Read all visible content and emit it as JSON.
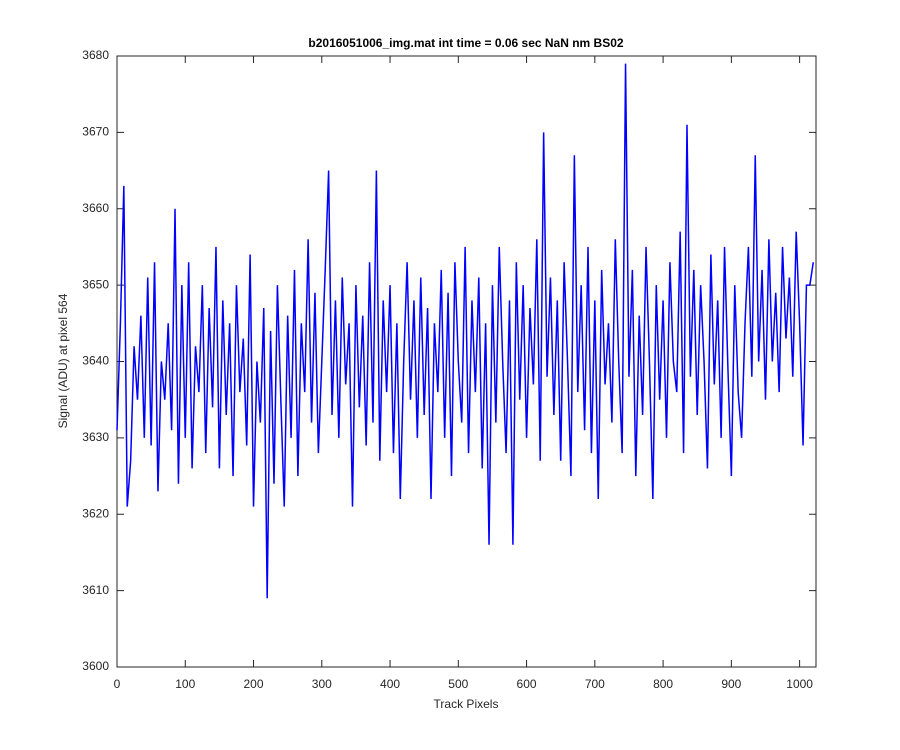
{
  "chart_data": {
    "type": "line",
    "title": "b2016051006_img.mat int time = 0.06 sec  NaN nm BS02",
    "x_label": "Track Pixels",
    "y_label": "Signal (ADU) at pixel 564",
    "xlim": [
      0,
      1024
    ],
    "xticks": [
      0,
      100,
      200,
      300,
      400,
      500,
      600,
      700,
      800,
      900,
      1000
    ],
    "ylim": [
      3600,
      3680
    ],
    "yticks": [
      3600,
      3610,
      3620,
      3630,
      3640,
      3650,
      3660,
      3670,
      3680
    ],
    "grid": false,
    "series": [
      {
        "color": "#0000ff",
        "x": [
          0,
          5,
          10,
          15,
          20,
          25,
          30,
          35,
          40,
          45,
          50,
          55,
          60,
          65,
          70,
          75,
          80,
          85,
          90,
          95,
          100,
          105,
          110,
          115,
          120,
          125,
          130,
          135,
          140,
          145,
          150,
          155,
          160,
          165,
          170,
          175,
          180,
          185,
          190,
          195,
          200,
          205,
          210,
          215,
          220,
          225,
          230,
          235,
          240,
          245,
          250,
          255,
          260,
          265,
          270,
          275,
          280,
          285,
          290,
          295,
          300,
          305,
          310,
          315,
          320,
          325,
          330,
          335,
          340,
          345,
          350,
          355,
          360,
          365,
          370,
          375,
          380,
          385,
          390,
          395,
          400,
          405,
          410,
          415,
          420,
          425,
          430,
          435,
          440,
          445,
          450,
          455,
          460,
          465,
          470,
          475,
          480,
          485,
          490,
          495,
          500,
          505,
          510,
          515,
          520,
          525,
          530,
          535,
          540,
          545,
          550,
          555,
          560,
          565,
          570,
          575,
          580,
          585,
          590,
          595,
          600,
          605,
          610,
          615,
          620,
          625,
          630,
          635,
          640,
          645,
          650,
          655,
          660,
          665,
          670,
          675,
          680,
          685,
          690,
          695,
          700,
          705,
          710,
          715,
          720,
          725,
          730,
          735,
          740,
          745,
          750,
          755,
          760,
          765,
          770,
          775,
          780,
          785,
          790,
          795,
          800,
          805,
          810,
          815,
          820,
          825,
          830,
          835,
          840,
          845,
          850,
          855,
          860,
          865,
          870,
          875,
          880,
          885,
          890,
          895,
          900,
          905,
          910,
          915,
          920,
          925,
          930,
          935,
          940,
          945,
          950,
          955,
          960,
          965,
          970,
          975,
          980,
          985,
          990,
          995,
          1000,
          1005,
          1010,
          1015,
          1020
        ],
        "values": [
          3631,
          3645,
          3663,
          3621,
          3627,
          3642,
          3635,
          3646,
          3630,
          3651,
          3629,
          3653,
          3623,
          3640,
          3635,
          3645,
          3631,
          3660,
          3624,
          3650,
          3630,
          3653,
          3626,
          3642,
          3636,
          3650,
          3628,
          3647,
          3634,
          3655,
          3626,
          3648,
          3633,
          3645,
          3625,
          3650,
          3636,
          3643,
          3629,
          3654,
          3621,
          3640,
          3632,
          3647,
          3609,
          3644,
          3624,
          3650,
          3635,
          3621,
          3646,
          3630,
          3652,
          3625,
          3645,
          3636,
          3656,
          3632,
          3649,
          3628,
          3640,
          3652,
          3665,
          3633,
          3648,
          3630,
          3651,
          3637,
          3645,
          3621,
          3650,
          3634,
          3646,
          3629,
          3653,
          3632,
          3665,
          3627,
          3648,
          3636,
          3650,
          3628,
          3645,
          3622,
          3640,
          3653,
          3635,
          3648,
          3630,
          3651,
          3633,
          3647,
          3622,
          3645,
          3636,
          3652,
          3630,
          3649,
          3625,
          3653,
          3640,
          3632,
          3655,
          3628,
          3648,
          3636,
          3651,
          3626,
          3645,
          3616,
          3650,
          3632,
          3655,
          3640,
          3628,
          3648,
          3616,
          3653,
          3635,
          3650,
          3630,
          3647,
          3637,
          3656,
          3627,
          3670,
          3638,
          3651,
          3633,
          3648,
          3627,
          3653,
          3640,
          3625,
          3667,
          3636,
          3650,
          3631,
          3655,
          3628,
          3648,
          3622,
          3652,
          3637,
          3645,
          3632,
          3656,
          3640,
          3628,
          3679,
          3638,
          3652,
          3625,
          3646,
          3633,
          3655,
          3640,
          3622,
          3650,
          3635,
          3648,
          3630,
          3653,
          3640,
          3636,
          3657,
          3628,
          3671,
          3638,
          3652,
          3633,
          3650,
          3640,
          3626,
          3654,
          3637,
          3648,
          3630,
          3655,
          3639,
          3625,
          3650,
          3636,
          3630,
          3645,
          3655,
          3638,
          3667,
          3640,
          3652,
          3635,
          3656,
          3640,
          3649,
          3636,
          3655,
          3643,
          3651,
          3638,
          3657,
          3645,
          3629,
          3650,
          3650,
          3653
        ]
      }
    ]
  }
}
